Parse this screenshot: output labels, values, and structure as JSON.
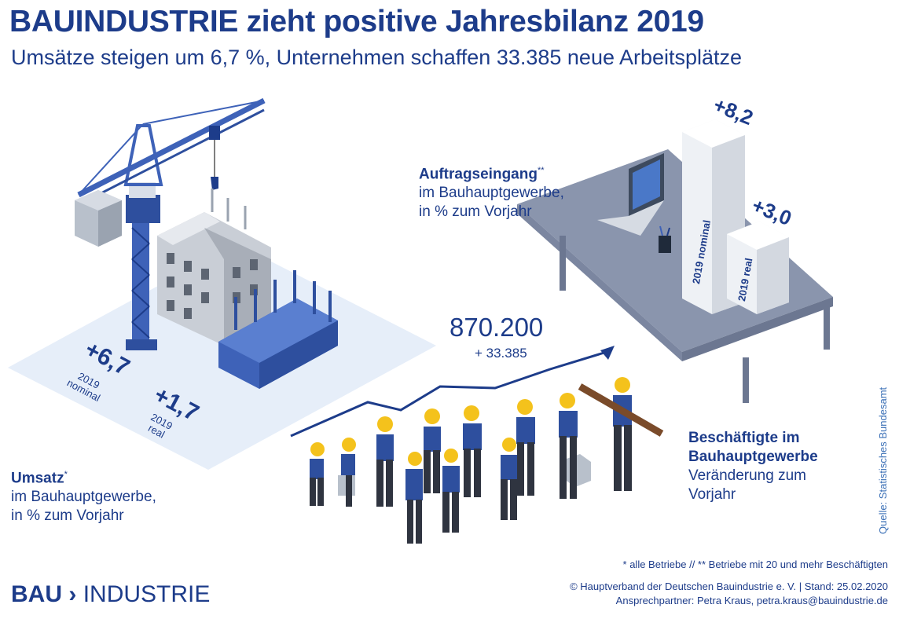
{
  "header": {
    "title": "BAUINDUSTRIE zieht positive Jahresbilanz 2019",
    "subtitle": "Umsätze steigen um 6,7 %, Unternehmen schaffen 33.385 neue Arbeitsplätze"
  },
  "umsatz": {
    "label_bold": "Umsatz",
    "label_sup": "*",
    "line2": "im Bauhauptgewerbe,",
    "line3": "in % zum Vorjahr",
    "nominal_value": "+6,7",
    "nominal_year": "2019",
    "nominal_label": "nominal",
    "real_value": "+1,7",
    "real_year": "2019",
    "real_label": "real"
  },
  "auftrag": {
    "label_bold": "Auftragseingang",
    "label_sup": "**",
    "line2": "im Bauhauptgewerbe,",
    "line3": "in % zum Vorjahr",
    "nominal_value": "+8,2",
    "nominal_label": "2019 nominal",
    "real_value": "+3,0",
    "real_label": "2019 real"
  },
  "beschaeftigte": {
    "total": "870.200",
    "delta": "+ 33.385",
    "label_bold_1": "Beschäftigte im",
    "label_bold_2": "Bauhauptgewerbe",
    "line3": "Veränderung zum",
    "line4": "Vorjahr"
  },
  "footer": {
    "footnote": "* alle Betriebe //  ** Betriebe mit 20 und mehr Beschäftigten",
    "copyright": "© Hauptverband der Deutschen Bauindustrie e. V. | Stand: 25.02.2020",
    "contact": "Ansprechpartner: Petra Kraus, petra.kraus@bauindustrie.de",
    "source": "Quelle: Statistisches Bundesamt",
    "logo_bold": "BAU",
    "logo_rest": "INDUSTRIE"
  },
  "colors": {
    "brand": "#1d3c8a",
    "accent_blue": "#3e62b8",
    "helmet": "#f4c21c",
    "ground": "#e4ecf8"
  }
}
